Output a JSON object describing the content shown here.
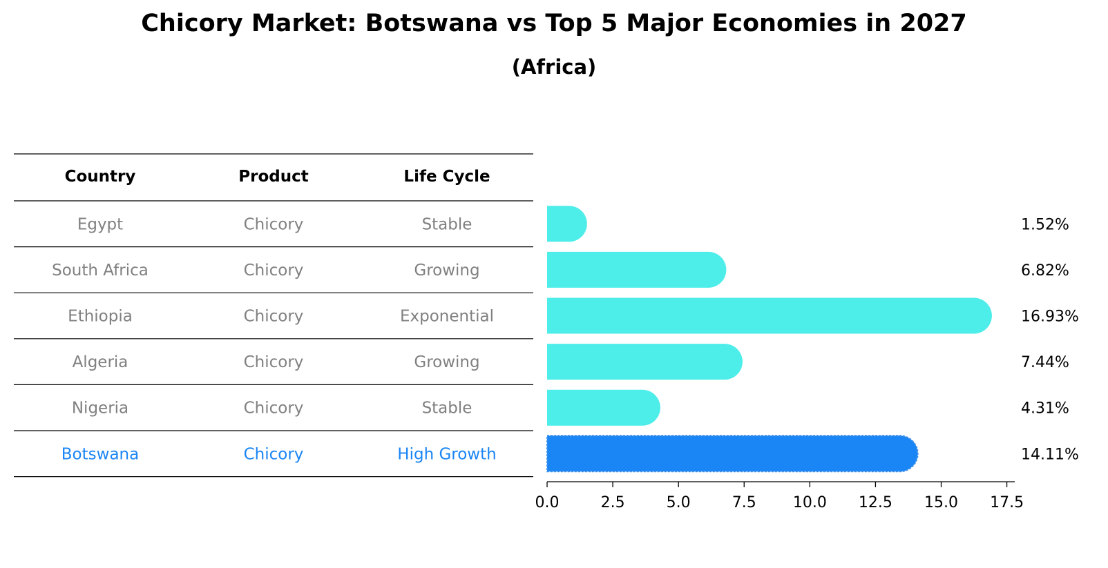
{
  "title": "Chicory Market: Botswana vs Top 5 Major Economies in 2027",
  "subtitle": "(Africa)",
  "table": {
    "headers": [
      "Country",
      "Product",
      "Life Cycle"
    ],
    "rows": [
      {
        "country": "Egypt",
        "product": "Chicory",
        "life_cycle": "Stable"
      },
      {
        "country": "South Africa",
        "product": "Chicory",
        "life_cycle": "Growing"
      },
      {
        "country": "Ethiopia",
        "product": "Chicory",
        "life_cycle": "Exponential"
      },
      {
        "country": "Algeria",
        "product": "Chicory",
        "life_cycle": "Growing"
      },
      {
        "country": "Nigeria",
        "product": "Chicory",
        "life_cycle": "Stable"
      },
      {
        "country": "Botswana",
        "product": "Chicory",
        "life_cycle": "High Growth"
      }
    ]
  },
  "chart_data": {
    "type": "bar",
    "orientation": "horizontal",
    "title": "Chicory Market: Botswana vs Top 5 Major Economies in 2027",
    "subtitle": "(Africa)",
    "categories": [
      "Egypt",
      "South Africa",
      "Ethiopia",
      "Algeria",
      "Nigeria",
      "Botswana"
    ],
    "values": [
      1.52,
      6.82,
      16.93,
      7.44,
      4.31,
      14.11
    ],
    "value_labels": [
      "1.52%",
      "6.82%",
      "16.93%",
      "7.44%",
      "4.31%",
      "14.11%"
    ],
    "highlight": "Botswana",
    "xlim": [
      0,
      17.8
    ],
    "xticks": [
      0.0,
      2.5,
      5.0,
      7.5,
      10.0,
      12.5,
      15.0,
      17.5
    ],
    "xtick_labels": [
      "0.0",
      "2.5",
      "5.0",
      "7.5",
      "10.0",
      "12.5",
      "15.0",
      "17.5"
    ],
    "xlabel": "",
    "ylabel": "",
    "grid": false
  },
  "colors": {
    "bar": "#4DEDEA",
    "highlight": "#1A85F5",
    "row_text": "#808080",
    "highlight_text": "#1A85F5",
    "line": "#000000"
  }
}
